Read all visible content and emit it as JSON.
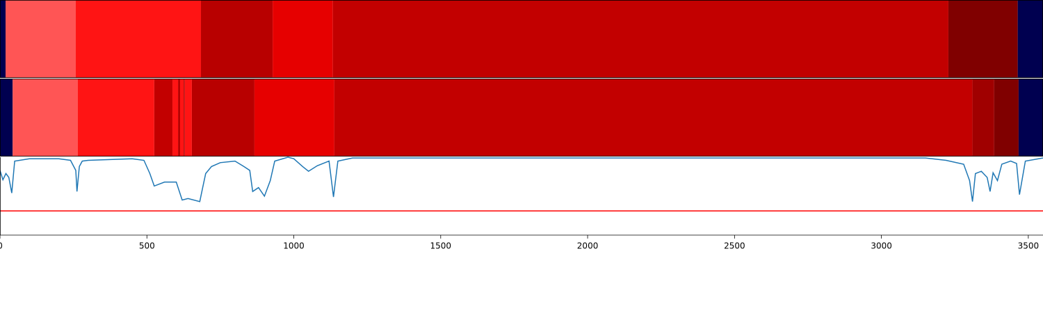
{
  "chart_data": [
    {
      "type": "segments",
      "bins": [
        0,
        19,
        258,
        684,
        928,
        1133,
        3228,
        3464,
        3550
      ],
      "colors": [
        "#000050",
        "#ff5555",
        "#ff1414",
        "#b80000",
        "#e60000",
        "#c20000",
        "#800000",
        "#000050"
      ]
    },
    {
      "type": "segments",
      "bins": [
        0,
        43,
        265,
        525,
        587,
        606,
        613,
        625,
        629,
        653,
        866,
        1138,
        3310,
        3384,
        3467,
        3550
      ],
      "colors": [
        "#000050",
        "#ff5555",
        "#ff1414",
        "#c20000",
        "#ff1414",
        "#b80000",
        "#ff1414",
        "#b80000",
        "#ff1414",
        "#b80000",
        "#e60000",
        "#c20000",
        "#a00000",
        "#800000",
        "#000050"
      ]
    },
    {
      "type": "line",
      "x": [
        0,
        10,
        20,
        30,
        40,
        50,
        100,
        200,
        240,
        258,
        262,
        270,
        280,
        300,
        450,
        490,
        510,
        525,
        560,
        600,
        620,
        640,
        680,
        690,
        700,
        720,
        750,
        800,
        830,
        850,
        860,
        880,
        900,
        920,
        935,
        980,
        1000,
        1030,
        1050,
        1080,
        1120,
        1135,
        1150,
        1200,
        3150,
        3220,
        3280,
        3300,
        3310,
        3320,
        3340,
        3360,
        3370,
        3380,
        3395,
        3410,
        3440,
        3460,
        3470,
        3490,
        3550
      ],
      "values": [
        0.83,
        0.71,
        0.79,
        0.74,
        0.54,
        0.95,
        0.98,
        0.98,
        0.96,
        0.83,
        0.56,
        0.88,
        0.95,
        0.96,
        0.98,
        0.96,
        0.79,
        0.63,
        0.68,
        0.68,
        0.45,
        0.47,
        0.43,
        0.61,
        0.79,
        0.88,
        0.93,
        0.95,
        0.88,
        0.83,
        0.56,
        0.61,
        0.5,
        0.7,
        0.95,
        1.0,
        0.98,
        0.88,
        0.82,
        0.89,
        0.95,
        0.49,
        0.95,
        0.99,
        0.99,
        0.96,
        0.91,
        0.7,
        0.43,
        0.79,
        0.82,
        0.74,
        0.56,
        0.8,
        0.7,
        0.91,
        0.95,
        0.92,
        0.52,
        0.95,
        0.99
      ],
      "color": "#1f77b4",
      "threshold": 0.31,
      "threshold_color": "#ff0000",
      "xlim": [
        0,
        3550
      ],
      "ylim": [
        0,
        1
      ],
      "xticks": [
        0,
        500,
        1000,
        1500,
        2000,
        2500,
        3000,
        3500
      ]
    }
  ]
}
